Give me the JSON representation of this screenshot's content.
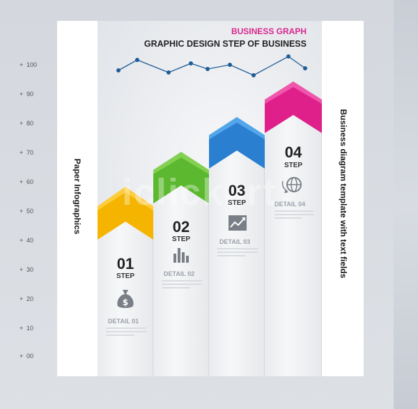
{
  "titles": {
    "business_graph": "BUSINESS GRAPH",
    "subtitle": "GRAPHIC DESIGN  STEP OF BUSINESS"
  },
  "side_labels": {
    "left": "Paper Infographics",
    "right": "Business diagram template with text fields"
  },
  "axis_ticks": [
    "100",
    "90",
    "80",
    "70",
    "60",
    "50",
    "40",
    "30",
    "20",
    "10",
    "00"
  ],
  "watermark": "iclickart",
  "steps": [
    {
      "number": "01",
      "step_label": "STEP",
      "detail": "DETAIL 01",
      "color": "#f4b400",
      "icon": "money-bag-icon"
    },
    {
      "number": "02",
      "step_label": "STEP",
      "detail": "DETAIL 02",
      "color": "#5cb82f",
      "icon": "bar-chart-icon"
    },
    {
      "number": "03",
      "step_label": "STEP",
      "detail": "DETAIL 03",
      "color": "#2a7fd0",
      "icon": "trend-chart-icon"
    },
    {
      "number": "04",
      "step_label": "STEP",
      "detail": "DETAIL 04",
      "color": "#e0208a",
      "icon": "globe-icon"
    }
  ],
  "colors": {
    "line_graph": "#1f5d96",
    "title_accent": "#d9278f"
  }
}
